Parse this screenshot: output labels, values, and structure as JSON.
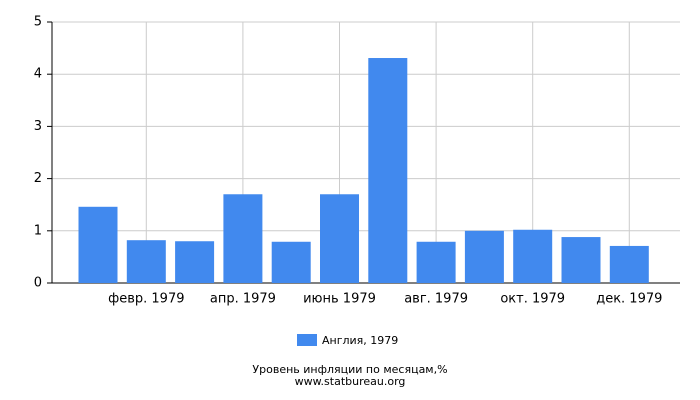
{
  "chart_data": {
    "type": "bar",
    "categories": [
      null,
      "февр. 1979",
      null,
      "апр. 1979",
      null,
      "июнь 1979",
      null,
      "авг. 1979",
      null,
      "окт. 1979",
      null,
      "дек. 1979"
    ],
    "series": [
      {
        "name": "Англия, 1979",
        "color": "#4189ee",
        "values": [
          1.46,
          0.82,
          0.8,
          1.7,
          0.79,
          1.7,
          4.31,
          0.79,
          1.0,
          1.02,
          0.88,
          0.71
        ]
      }
    ],
    "ylim": [
      0,
      5
    ],
    "yticks": [
      0,
      1,
      2,
      3,
      4,
      5
    ],
    "grid": true,
    "caption": "Уровень инфляции по месяцам,%",
    "source": "www.statbureau.org"
  }
}
